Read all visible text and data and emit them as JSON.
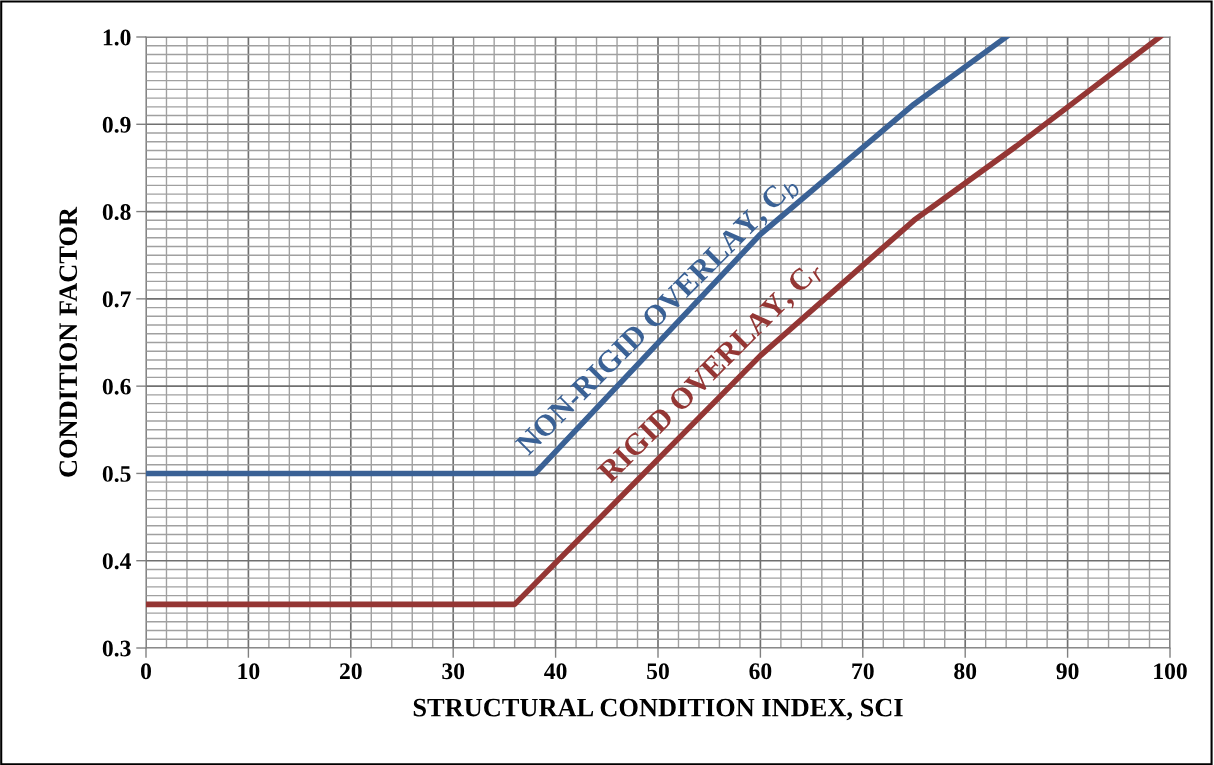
{
  "chart_data": {
    "type": "line",
    "xlabel": "STRUCTURAL CONDITION INDEX, SCI",
    "ylabel": "CONDITION FACTOR",
    "xlim": [
      0,
      100
    ],
    "xticks": [
      0,
      10,
      20,
      30,
      40,
      50,
      60,
      70,
      80,
      90,
      100
    ],
    "ylim": [
      0.3,
      1.0
    ],
    "yticks": [
      0.3,
      0.4,
      0.5,
      0.6,
      0.7,
      0.8,
      0.9,
      {
        "value": 1.0,
        "label": "1.0"
      }
    ],
    "grid": true,
    "marker": "none",
    "line_style": "solid",
    "series": [
      {
        "name": "NON-RIGID OVERLAY, C$_{b}$",
        "color": "#3a6195",
        "x": [
          0,
          38,
          60,
          75,
          84
        ],
        "values": [
          0.5,
          0.5,
          0.774,
          0.923,
          1.0
        ]
      },
      {
        "name": "RIGID OVERLAY, C$_{r}$",
        "color": "#943634",
        "x": [
          0,
          36,
          60,
          75,
          85,
          99
        ],
        "values": [
          0.35,
          0.35,
          0.635,
          0.79,
          0.875,
          1.0
        ]
      }
    ]
  }
}
